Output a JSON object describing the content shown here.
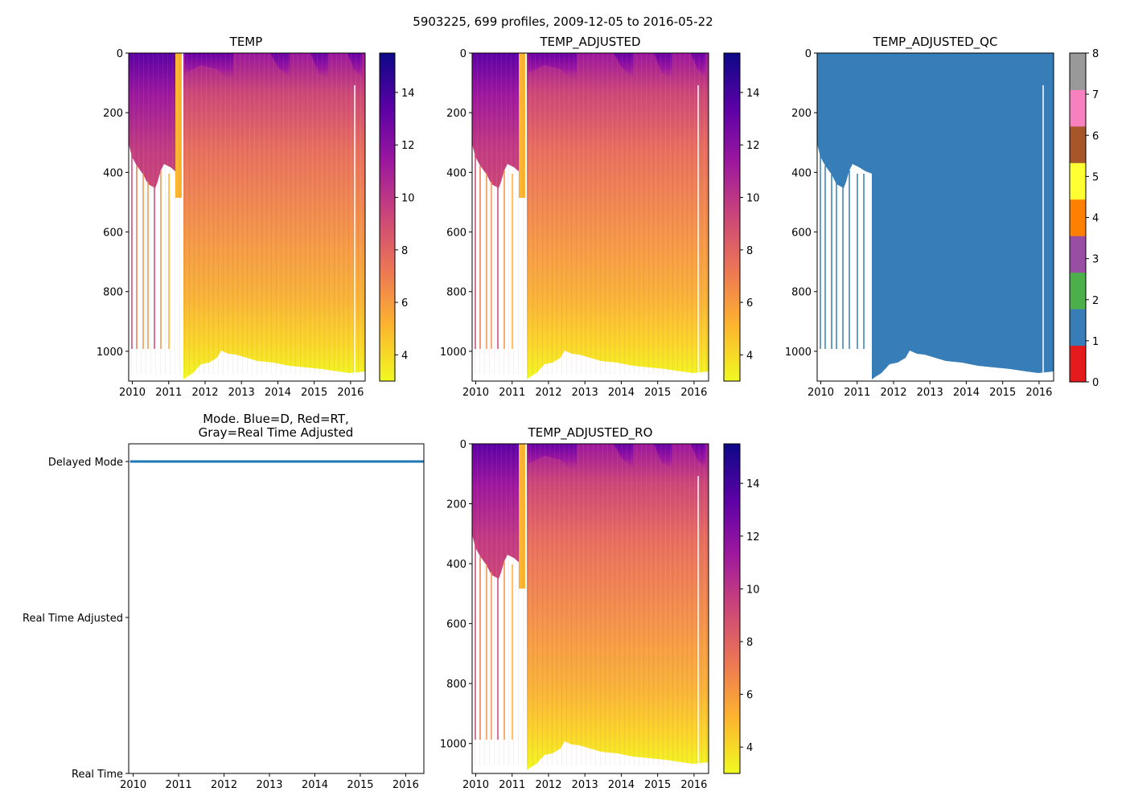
{
  "figure": {
    "suptitle": "5903225, 699 profiles, 2009-12-05 to 2016-05-22",
    "colors": {
      "plasma": [
        "#f0f921",
        "#fdb42f",
        "#ed7953",
        "#cc4778",
        "#9c179e",
        "#5c01a6",
        "#0d0887"
      ],
      "qc_palette": [
        "#e41a1c",
        "#377eb8",
        "#4daf4a",
        "#984ea3",
        "#ff7f00",
        "#ffff33",
        "#a65628",
        "#f781bf",
        "#999999"
      ],
      "mode_line": "#1f77b4"
    }
  },
  "chart_data": [
    {
      "type": "heatmap",
      "id": "temp",
      "title": "TEMP",
      "x_ticks": [
        "2010",
        "2011",
        "2012",
        "2013",
        "2014",
        "2015",
        "2016"
      ],
      "y_ticks": [
        "0",
        "200",
        "400",
        "600",
        "800",
        "1000"
      ],
      "ylim": [
        1100,
        0
      ],
      "xlim": [
        2009.9,
        2016.4
      ],
      "colorbar": {
        "range": [
          3,
          15.5
        ],
        "ticks": [
          "4",
          "6",
          "8",
          "10",
          "12",
          "14"
        ],
        "cmap": "plasma"
      }
    },
    {
      "type": "heatmap",
      "id": "temp_adjusted",
      "title": "TEMP_ADJUSTED",
      "x_ticks": [
        "2010",
        "2011",
        "2012",
        "2013",
        "2014",
        "2015",
        "2016"
      ],
      "y_ticks": [
        "0",
        "200",
        "400",
        "600",
        "800",
        "1000"
      ],
      "ylim": [
        1100,
        0
      ],
      "xlim": [
        2009.9,
        2016.4
      ],
      "colorbar": {
        "range": [
          3,
          15.5
        ],
        "ticks": [
          "4",
          "6",
          "8",
          "10",
          "12",
          "14"
        ],
        "cmap": "plasma"
      }
    },
    {
      "type": "heatmap",
      "id": "temp_adjusted_qc",
      "title": "TEMP_ADJUSTED_QC",
      "x_ticks": [
        "2010",
        "2011",
        "2012",
        "2013",
        "2014",
        "2015",
        "2016"
      ],
      "y_ticks": [
        "0",
        "200",
        "400",
        "600",
        "800",
        "1000"
      ],
      "ylim": [
        1100,
        0
      ],
      "xlim": [
        2009.9,
        2016.4
      ],
      "qc_value": 1,
      "colorbar": {
        "range": [
          0,
          8
        ],
        "ticks": [
          "0",
          "1",
          "2",
          "3",
          "4",
          "5",
          "6",
          "7",
          "8"
        ],
        "cmap": "qc"
      }
    },
    {
      "type": "line",
      "id": "mode",
      "title_lines": [
        "Mode. Blue=D, Red=RT,",
        "Gray=Real Time Adjusted"
      ],
      "x_ticks": [
        "2010",
        "2011",
        "2012",
        "2013",
        "2014",
        "2015",
        "2016"
      ],
      "y_ticks": [
        "Delayed Mode",
        "Real Time Adjusted",
        "Real Time"
      ],
      "xlim": [
        2009.9,
        2016.4
      ],
      "series": [
        {
          "name": "Delayed Mode",
          "x": [
            2009.93,
            2016.39
          ],
          "y": [
            2,
            2
          ]
        }
      ]
    },
    {
      "type": "heatmap",
      "id": "temp_adjusted_ro",
      "title": "TEMP_ADJUSTED_RO",
      "x_ticks": [
        "2010",
        "2011",
        "2012",
        "2013",
        "2014",
        "2015",
        "2016"
      ],
      "y_ticks": [
        "0",
        "200",
        "400",
        "600",
        "800",
        "1000"
      ],
      "ylim": [
        1100,
        0
      ],
      "xlim": [
        2009.9,
        2016.4
      ],
      "colorbar": {
        "range": [
          3,
          15.5
        ],
        "ticks": [
          "4",
          "6",
          "8",
          "10",
          "12",
          "14"
        ],
        "cmap": "plasma"
      }
    }
  ]
}
